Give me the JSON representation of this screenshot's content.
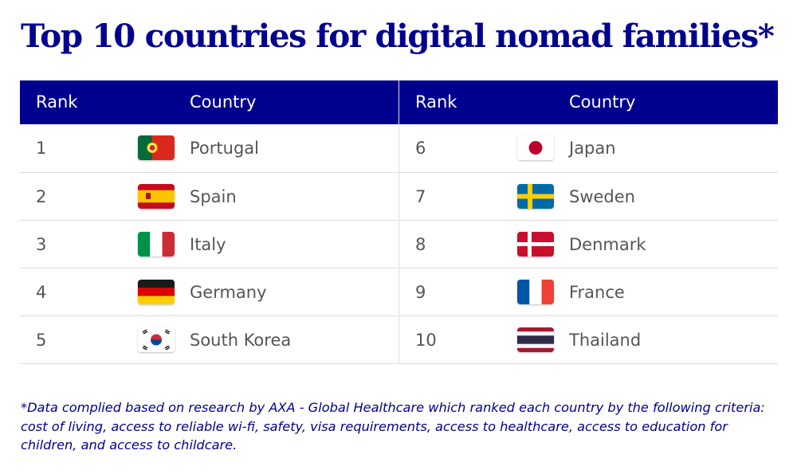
{
  "title": "Top 10 countries for digital nomad families*",
  "table": {
    "headers": {
      "rank": "Rank",
      "country": "Country"
    },
    "left": [
      {
        "rank": "1",
        "country": "Portugal",
        "flag": "portugal-flag-icon"
      },
      {
        "rank": "2",
        "country": "Spain",
        "flag": "spain-flag-icon"
      },
      {
        "rank": "3",
        "country": "Italy",
        "flag": "italy-flag-icon"
      },
      {
        "rank": "4",
        "country": "Germany",
        "flag": "germany-flag-icon"
      },
      {
        "rank": "5",
        "country": "South Korea",
        "flag": "south-korea-flag-icon"
      }
    ],
    "right": [
      {
        "rank": "6",
        "country": "Japan",
        "flag": "japan-flag-icon"
      },
      {
        "rank": "7",
        "country": "Sweden",
        "flag": "sweden-flag-icon"
      },
      {
        "rank": "8",
        "country": "Denmark",
        "flag": "denmark-flag-icon"
      },
      {
        "rank": "9",
        "country": "France",
        "flag": "france-flag-icon"
      },
      {
        "rank": "10",
        "country": "Thailand",
        "flag": "thailand-flag-icon"
      }
    ]
  },
  "footnote": "*Data complied based on research by AXA - Global Healthcare which ranked each country by the following criteria: cost of living, access to reliable wi-fi, safety, visa requirements, access to healthcare, access to education for children, and access to childcare.",
  "colors": {
    "brand_navy": "#00008f",
    "row_text": "#555555",
    "divider": "#dcdcdc"
  }
}
